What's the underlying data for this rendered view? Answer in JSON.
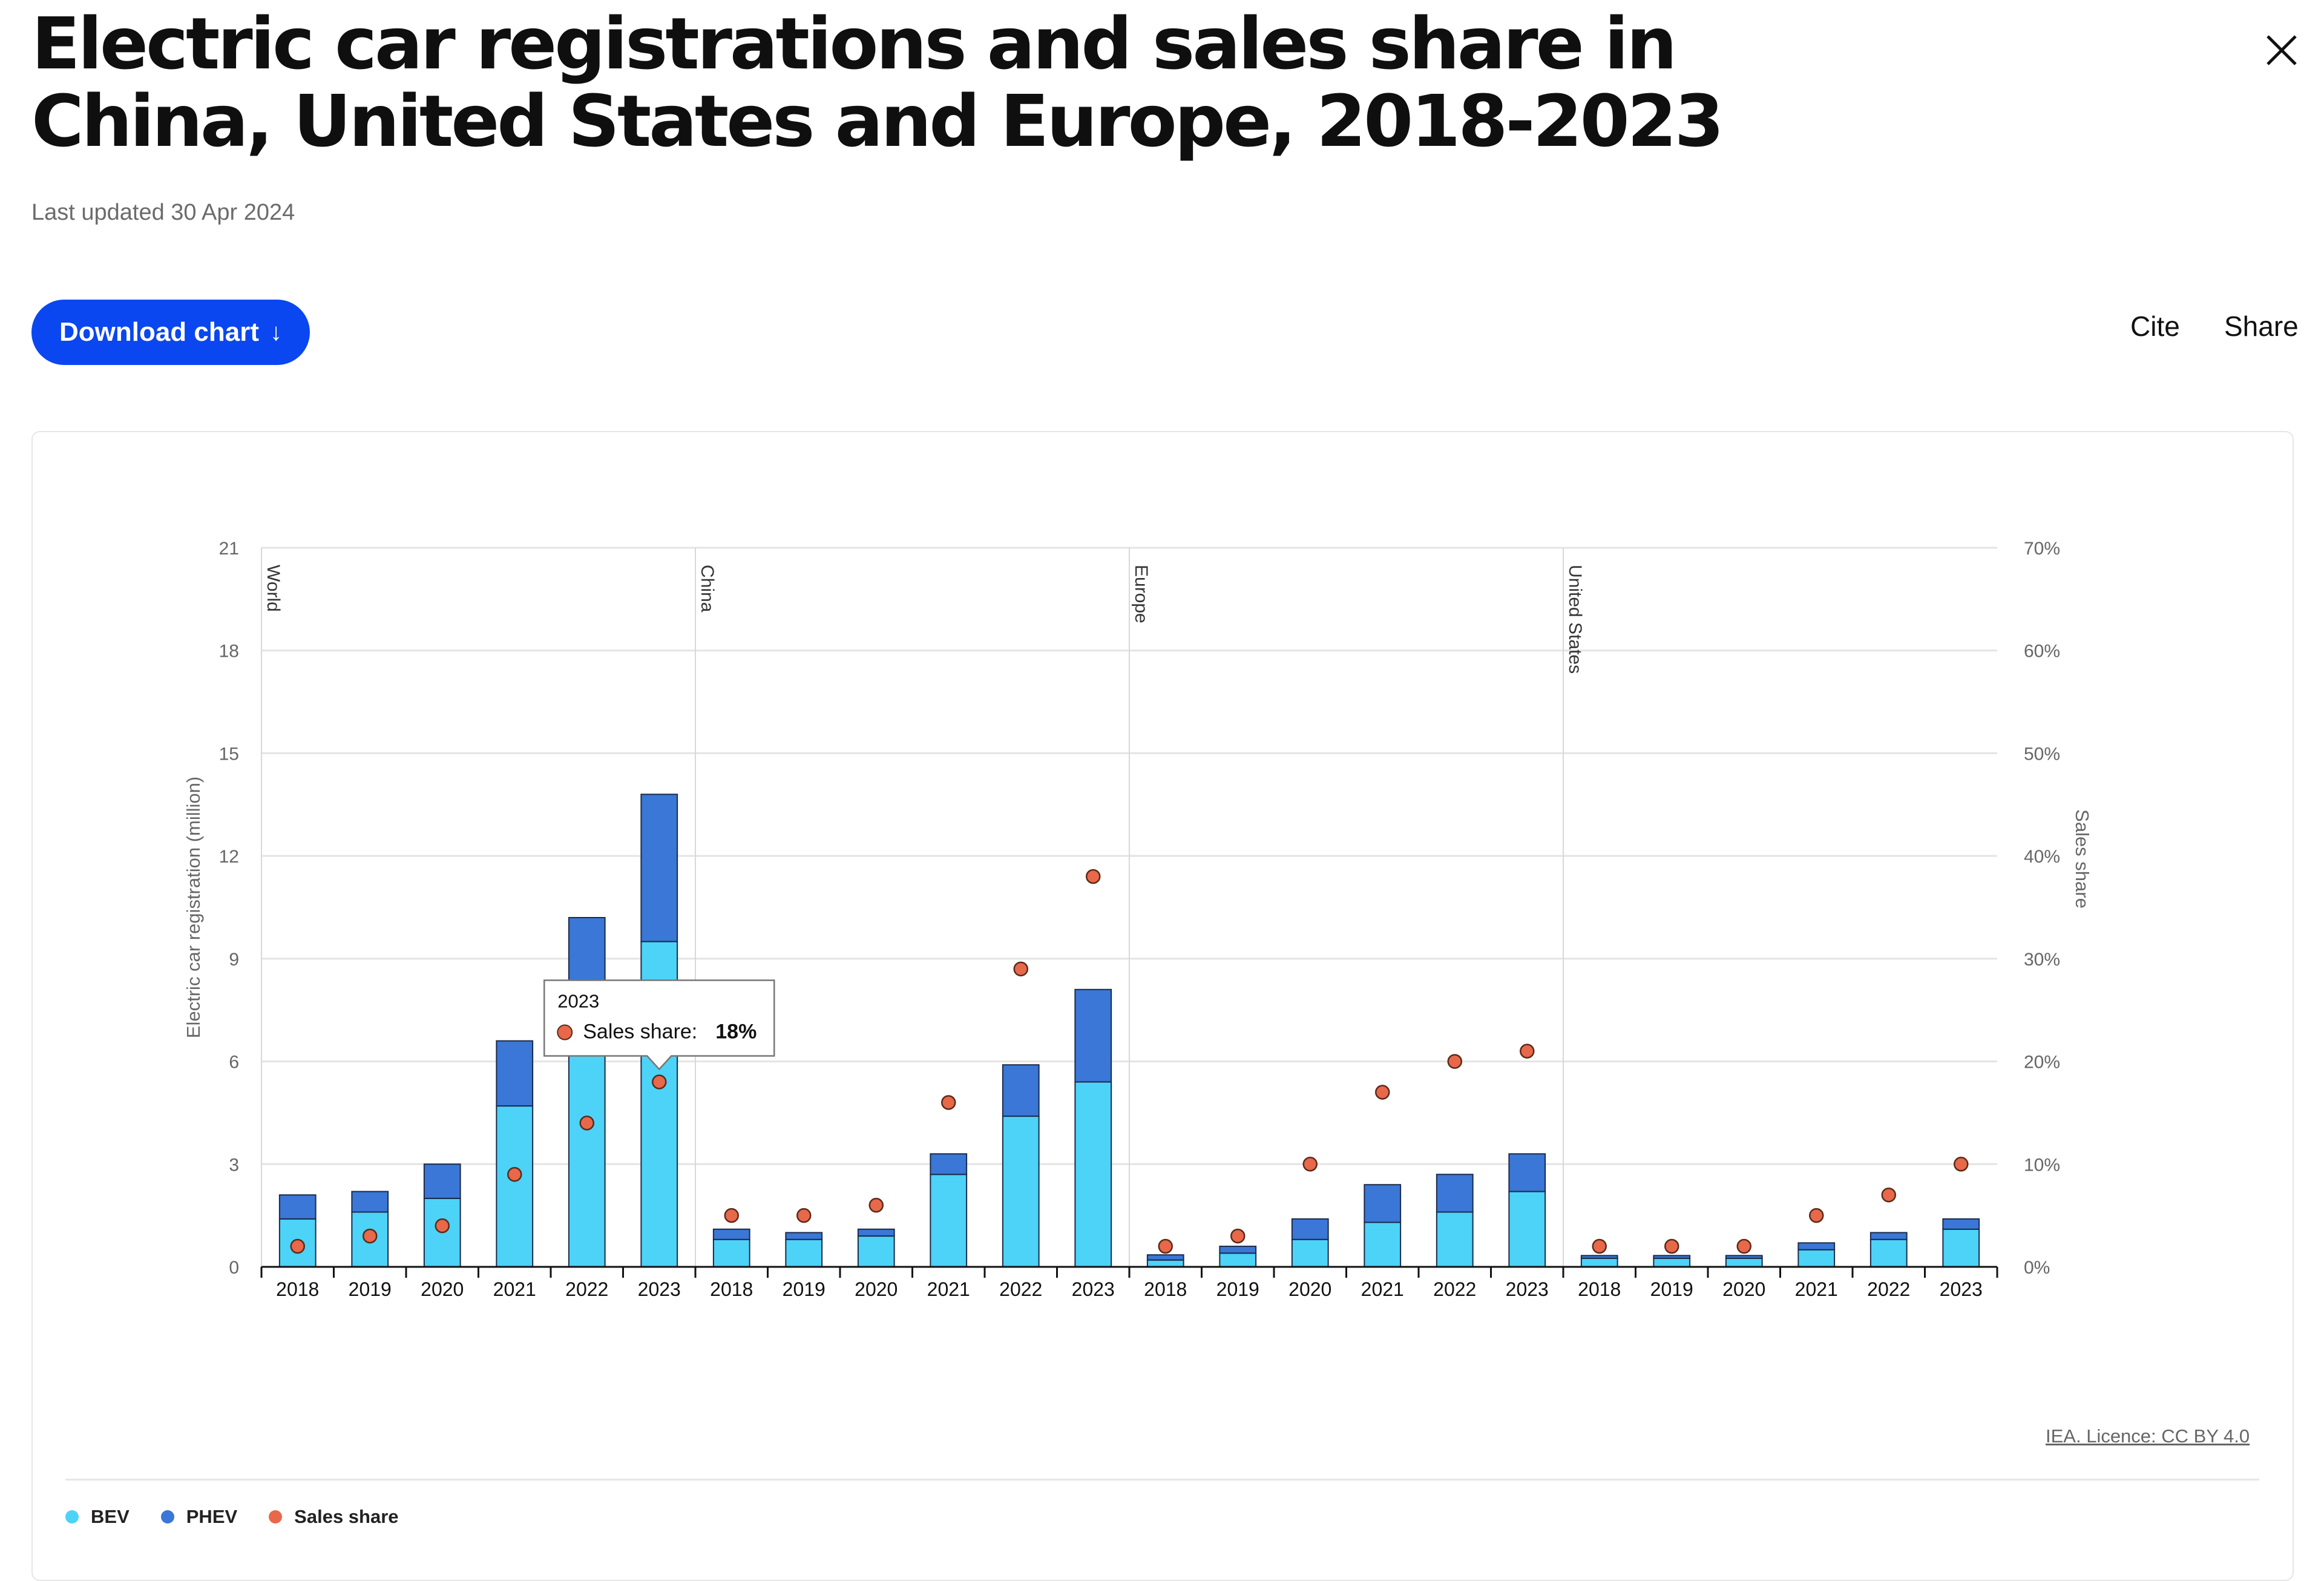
{
  "header": {
    "title": "Electric car registrations and sales share in China, United States and Europe, 2018-2023",
    "last_updated": "Last updated 30 Apr 2024"
  },
  "actions": {
    "download_label": "Download chart",
    "download_icon": "↓",
    "cite_label": "Cite",
    "share_label": "Share",
    "close_icon": "close-icon"
  },
  "footer": {
    "license": "IEA. Licence: CC BY 4.0"
  },
  "colors": {
    "bev": "#4cd3f7",
    "phev": "#3a77d6",
    "sales_share": "#e8684a",
    "accent": "#0a47f0"
  },
  "chart_data": {
    "type": "bar",
    "stacked": true,
    "groups": [
      "World",
      "China",
      "Europe",
      "United States"
    ],
    "categories": [
      "2018",
      "2019",
      "2020",
      "2021",
      "2022",
      "2023"
    ],
    "left_axis": {
      "label": "Electric car registration (million)",
      "ticks": [
        "0",
        "3",
        "6",
        "9",
        "12",
        "15",
        "18",
        "21"
      ],
      "ylim": [
        0,
        21
      ]
    },
    "right_axis": {
      "label": "Sales share",
      "ticks": [
        "0%",
        "10%",
        "20%",
        "30%",
        "40%",
        "50%",
        "60%",
        "70%"
      ],
      "ylim": [
        0,
        70
      ]
    },
    "series": [
      {
        "name": "BEV",
        "values": [
          [
            1.4,
            1.6,
            2.0,
            4.7,
            7.3,
            9.5
          ],
          [
            0.8,
            0.8,
            0.9,
            2.7,
            4.4,
            5.4
          ],
          [
            0.2,
            0.4,
            0.8,
            1.3,
            1.6,
            2.2
          ],
          [
            0.25,
            0.25,
            0.25,
            0.5,
            0.8,
            1.1
          ]
        ]
      },
      {
        "name": "PHEV",
        "values": [
          [
            0.7,
            0.6,
            1.0,
            1.9,
            2.9,
            4.3
          ],
          [
            0.3,
            0.2,
            0.2,
            0.6,
            1.5,
            2.7
          ],
          [
            0.15,
            0.2,
            0.6,
            1.1,
            1.1,
            1.1
          ],
          [
            0.08,
            0.08,
            0.08,
            0.2,
            0.2,
            0.3
          ]
        ]
      },
      {
        "name": "Sales share",
        "values": [
          [
            2,
            3,
            4,
            9,
            14,
            18
          ],
          [
            5,
            5,
            6,
            16,
            29,
            38
          ],
          [
            2,
            3,
            10,
            17,
            20,
            21
          ],
          [
            2,
            2,
            2,
            5,
            7,
            10
          ]
        ]
      }
    ],
    "tooltip": {
      "title": "2023",
      "label": "Sales share:",
      "value": "18%"
    },
    "legend": [
      "BEV",
      "PHEV",
      "Sales share"
    ],
    "legend_placement": "bottom-left",
    "grid": true
  }
}
